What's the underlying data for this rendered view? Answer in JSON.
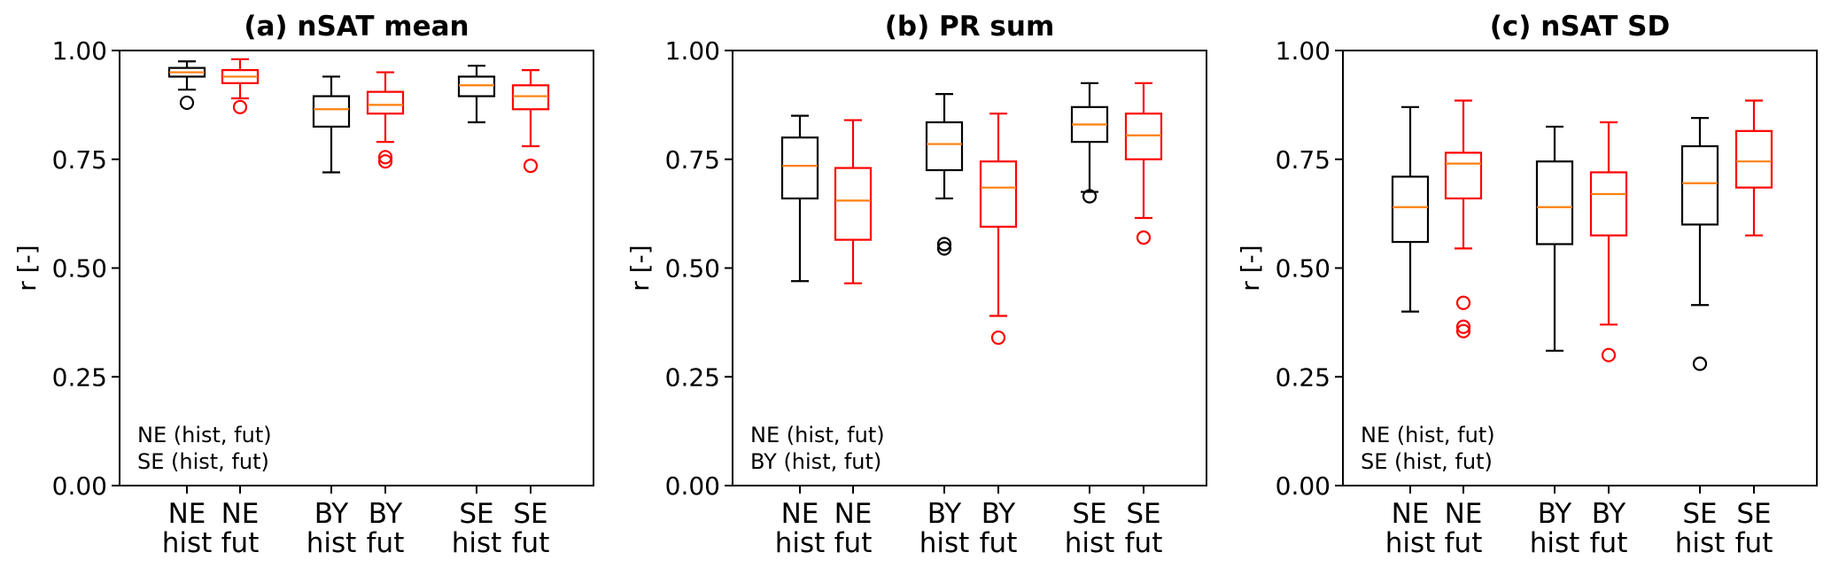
{
  "colors": {
    "hist": "#000000",
    "fut": "#ff0000",
    "median": "#ff7f0e"
  },
  "chart_data": [
    {
      "type": "box",
      "title": "(a) nSAT mean",
      "ylabel": "r [-]",
      "ylim": [
        0,
        1
      ],
      "yticks": [
        "0.00",
        "0.25",
        "0.50",
        "0.75",
        "1.00"
      ],
      "annotation": [
        "NE (hist, fut)",
        "SE (hist, fut)"
      ],
      "boxes": [
        {
          "label": [
            "NE",
            "hist"
          ],
          "group": "hist",
          "whislo": 0.91,
          "q1": 0.94,
          "median": 0.95,
          "q3": 0.96,
          "whishi": 0.975,
          "fliers": [
            0.88
          ]
        },
        {
          "label": [
            "NE",
            "fut"
          ],
          "group": "fut",
          "whislo": 0.89,
          "q1": 0.925,
          "median": 0.94,
          "q3": 0.955,
          "whishi": 0.98,
          "fliers": [
            0.87
          ]
        },
        {
          "label": [
            "BY",
            "hist"
          ],
          "group": "hist",
          "whislo": 0.72,
          "q1": 0.825,
          "median": 0.865,
          "q3": 0.895,
          "whishi": 0.94,
          "fliers": []
        },
        {
          "label": [
            "BY",
            "fut"
          ],
          "group": "fut",
          "whislo": 0.79,
          "q1": 0.855,
          "median": 0.875,
          "q3": 0.905,
          "whishi": 0.95,
          "fliers": [
            0.755,
            0.745
          ]
        },
        {
          "label": [
            "SE",
            "hist"
          ],
          "group": "hist",
          "whislo": 0.835,
          "q1": 0.895,
          "median": 0.92,
          "q3": 0.94,
          "whishi": 0.965,
          "fliers": []
        },
        {
          "label": [
            "SE",
            "fut"
          ],
          "group": "fut",
          "whislo": 0.78,
          "q1": 0.865,
          "median": 0.895,
          "q3": 0.92,
          "whishi": 0.955,
          "fliers": [
            0.735
          ]
        }
      ]
    },
    {
      "type": "box",
      "title": "(b) PR sum",
      "ylabel": "r [-]",
      "ylim": [
        0,
        1
      ],
      "yticks": [
        "0.00",
        "0.25",
        "0.50",
        "0.75",
        "1.00"
      ],
      "annotation": [
        "NE (hist, fut)",
        "BY (hist, fut)"
      ],
      "boxes": [
        {
          "label": [
            "NE",
            "hist"
          ],
          "group": "hist",
          "whislo": 0.47,
          "q1": 0.66,
          "median": 0.735,
          "q3": 0.8,
          "whishi": 0.85,
          "fliers": []
        },
        {
          "label": [
            "NE",
            "fut"
          ],
          "group": "fut",
          "whislo": 0.465,
          "q1": 0.565,
          "median": 0.655,
          "q3": 0.73,
          "whishi": 0.84,
          "fliers": []
        },
        {
          "label": [
            "BY",
            "hist"
          ],
          "group": "hist",
          "whislo": 0.66,
          "q1": 0.725,
          "median": 0.785,
          "q3": 0.835,
          "whishi": 0.9,
          "fliers": [
            0.555,
            0.545
          ]
        },
        {
          "label": [
            "BY",
            "fut"
          ],
          "group": "fut",
          "whislo": 0.39,
          "q1": 0.595,
          "median": 0.685,
          "q3": 0.745,
          "whishi": 0.855,
          "fliers": [
            0.34
          ]
        },
        {
          "label": [
            "SE",
            "hist"
          ],
          "group": "hist",
          "whislo": 0.675,
          "q1": 0.79,
          "median": 0.83,
          "q3": 0.87,
          "whishi": 0.925,
          "fliers": [
            0.665
          ]
        },
        {
          "label": [
            "SE",
            "fut"
          ],
          "group": "fut",
          "whislo": 0.615,
          "q1": 0.75,
          "median": 0.805,
          "q3": 0.855,
          "whishi": 0.925,
          "fliers": [
            0.57
          ]
        }
      ]
    },
    {
      "type": "box",
      "title": "(c) nSAT SD",
      "ylabel": "r [-]",
      "ylim": [
        0,
        1
      ],
      "yticks": [
        "0.00",
        "0.25",
        "0.50",
        "0.75",
        "1.00"
      ],
      "annotation": [
        "NE (hist, fut)",
        "SE (hist, fut)"
      ],
      "boxes": [
        {
          "label": [
            "NE",
            "hist"
          ],
          "group": "hist",
          "whislo": 0.4,
          "q1": 0.56,
          "median": 0.64,
          "q3": 0.71,
          "whishi": 0.87,
          "fliers": []
        },
        {
          "label": [
            "NE",
            "fut"
          ],
          "group": "fut",
          "whislo": 0.545,
          "q1": 0.66,
          "median": 0.74,
          "q3": 0.765,
          "whishi": 0.885,
          "fliers": [
            0.42,
            0.365,
            0.355
          ]
        },
        {
          "label": [
            "BY",
            "hist"
          ],
          "group": "hist",
          "whislo": 0.31,
          "q1": 0.555,
          "median": 0.64,
          "q3": 0.745,
          "whishi": 0.825,
          "fliers": []
        },
        {
          "label": [
            "BY",
            "fut"
          ],
          "group": "fut",
          "whislo": 0.37,
          "q1": 0.575,
          "median": 0.67,
          "q3": 0.72,
          "whishi": 0.835,
          "fliers": [
            0.3
          ]
        },
        {
          "label": [
            "SE",
            "hist"
          ],
          "group": "hist",
          "whislo": 0.415,
          "q1": 0.6,
          "median": 0.695,
          "q3": 0.78,
          "whishi": 0.845,
          "fliers": [
            0.28
          ]
        },
        {
          "label": [
            "SE",
            "fut"
          ],
          "group": "fut",
          "whislo": 0.575,
          "q1": 0.685,
          "median": 0.745,
          "q3": 0.815,
          "whishi": 0.885,
          "fliers": []
        }
      ]
    }
  ]
}
